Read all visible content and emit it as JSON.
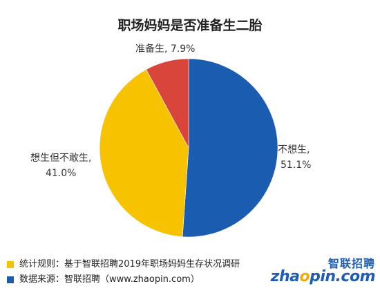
{
  "title": "职场妈妈是否准备生二胎",
  "chart_data": {
    "type": "pie",
    "title": "职场妈妈是否准备生二胎",
    "slices": [
      {
        "label": "不想生",
        "value": 51.1,
        "value_label": "51.1%",
        "color": "#1a5cb0"
      },
      {
        "label": "想生但不敢生",
        "value": 41.0,
        "value_label": "41.0%",
        "color": "#f7c300"
      },
      {
        "label": "准备生",
        "value": 7.9,
        "value_label": "7.9%",
        "color": "#d9443b"
      }
    ]
  },
  "labels": {
    "prepare": "准备生, 7.9%",
    "want_name": "想生但不敢生,",
    "want_value": "41.0%",
    "no_name": "不想生,",
    "no_value": "51.1%"
  },
  "footer": {
    "stat_rule": "统计规则：基于智联招聘2019年职场妈妈生存状况调研",
    "stat_color": "#f7c300",
    "source": "数据来源：智联招聘（www.zhaopin.com）",
    "source_color": "#1a5cb0"
  },
  "logo": {
    "cn": "智联招聘",
    "en_prefix": "zha",
    "en_mark": "o",
    "en_suffix": "pin.com"
  }
}
